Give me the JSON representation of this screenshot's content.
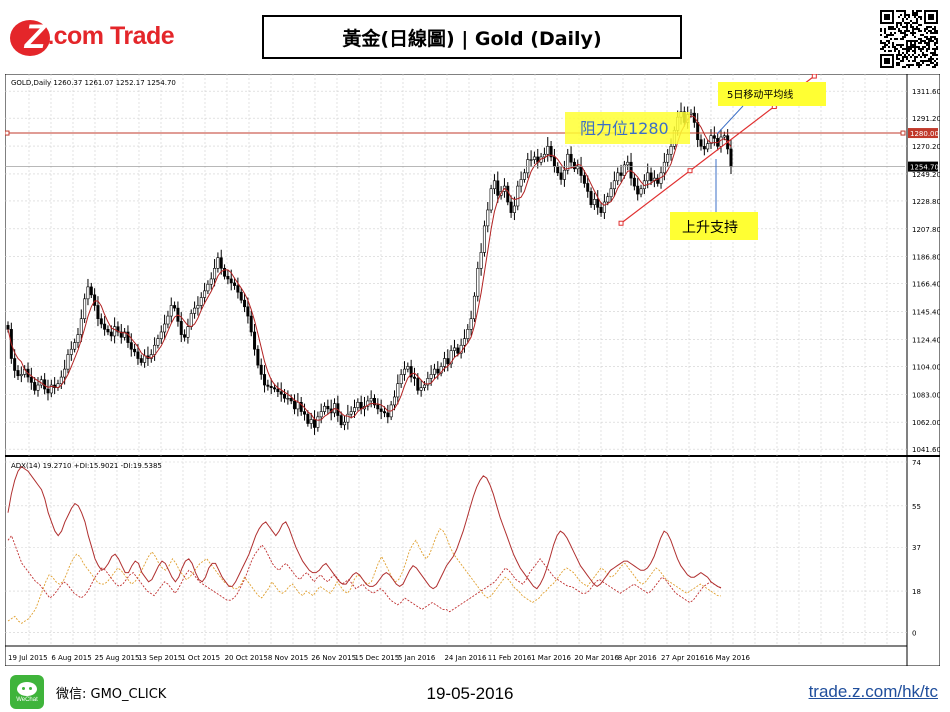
{
  "header": {
    "logo_z": "Z",
    "logo_dot": ".",
    "logo_text": "com Trade",
    "title": "黃金(日線圖) | Gold  (Daily)"
  },
  "footer": {
    "wechat_badge": "WeChat",
    "wechat_id": "微信: GMO_CLICK",
    "date": "19-05-2016",
    "url": "trade.z.com/hk/tc"
  },
  "colors": {
    "brand_red": "#e4262a",
    "candle": "#000000",
    "ma_line": "#b22222",
    "resistance_line": "#c0392b",
    "trend_line": "#e03030",
    "adx_line": "#b03030",
    "plus_di": "#e0a030",
    "minus_di": "#c03030",
    "callout_bg": "#ffff33",
    "grid": "#d0d0d0"
  },
  "chart_data": {
    "type": "candlestick",
    "symbol_header": "GOLD,Daily  1260.37 1261.07 1252.17 1254.70",
    "price_axis": {
      "range": [
        1038,
        1320
      ],
      "ticks": [
        "1311.60",
        "1291.20",
        "1270.20",
        "1249.20",
        "1228.80",
        "1207.80",
        "1186.80",
        "1166.40",
        "1145.40",
        "1124.40",
        "1104.00",
        "1083.00",
        "1062.00",
        "1041.60"
      ],
      "highlight_labels": [
        "1280.00",
        "1254.70"
      ]
    },
    "x_axis": {
      "ticks": [
        "19 Jul 2015",
        "6 Aug 2015",
        "25 Aug 2015",
        "13 Sep 2015",
        "1 Oct 2015",
        "20 Oct 2015",
        "8 Nov 2015",
        "26 Nov 2015",
        "15 Dec 2015",
        "5 Jan 2016",
        "24 Jan 2016",
        "11 Feb 2016",
        "1 Mar 2016",
        "20 Mar 2016",
        "8 Apr 2016",
        "27 Apr 2016",
        "16 May 2016"
      ]
    },
    "close_series": [
      1132,
      1110,
      1101,
      1097,
      1098,
      1102,
      1096,
      1092,
      1086,
      1090,
      1094,
      1087,
      1084,
      1090,
      1088,
      1091,
      1096,
      1102,
      1113,
      1117,
      1122,
      1128,
      1140,
      1155,
      1164,
      1158,
      1150,
      1140,
      1136,
      1132,
      1130,
      1127,
      1134,
      1130,
      1126,
      1130,
      1122,
      1117,
      1115,
      1110,
      1107,
      1112,
      1110,
      1113,
      1120,
      1125,
      1130,
      1136,
      1142,
      1150,
      1148,
      1138,
      1128,
      1126,
      1134,
      1144,
      1148,
      1150,
      1156,
      1161,
      1166,
      1170,
      1178,
      1186,
      1178,
      1172,
      1170,
      1167,
      1165,
      1160,
      1154,
      1149,
      1142,
      1130,
      1117,
      1105,
      1098,
      1090,
      1089,
      1088,
      1087,
      1085,
      1083,
      1080,
      1080,
      1078,
      1072,
      1077,
      1070,
      1068,
      1061,
      1064,
      1058,
      1066,
      1070,
      1074,
      1072,
      1069,
      1076,
      1067,
      1060,
      1062,
      1068,
      1070,
      1073,
      1077,
      1072,
      1074,
      1078,
      1080,
      1075,
      1072,
      1070,
      1069,
      1066,
      1075,
      1081,
      1091,
      1098,
      1102,
      1104,
      1096,
      1095,
      1086,
      1088,
      1090,
      1095,
      1098,
      1102,
      1099,
      1104,
      1110,
      1106,
      1116,
      1118,
      1114,
      1120,
      1125,
      1132,
      1140,
      1157,
      1178,
      1190,
      1210,
      1222,
      1238,
      1244,
      1233,
      1236,
      1240,
      1228,
      1220,
      1225,
      1240,
      1245,
      1250,
      1260,
      1260,
      1262,
      1258,
      1262,
      1264,
      1270,
      1262,
      1255,
      1250,
      1245,
      1252,
      1264,
      1258,
      1253,
      1255,
      1248,
      1242,
      1236,
      1226,
      1230,
      1224,
      1220,
      1228,
      1232,
      1238,
      1244,
      1250,
      1248,
      1256,
      1258,
      1246,
      1240,
      1234,
      1238,
      1244,
      1250,
      1244,
      1246,
      1242,
      1250,
      1258,
      1264,
      1270,
      1282,
      1292,
      1296,
      1288,
      1294,
      1295,
      1288,
      1275,
      1270,
      1268,
      1272,
      1278,
      1276,
      1270,
      1277,
      1278,
      1268,
      1254.7
    ],
    "ma_label": "5日移动平均线",
    "resistance": {
      "level": 1280,
      "label": "阻力位1280"
    },
    "trend_support": {
      "label": "上升支持",
      "start": [
        184,
        1212
      ],
      "end": [
        230,
        1300
      ]
    },
    "indicator": {
      "header": "ADX(14) 19.2710 +DI:15.9021 -DI:19.5385",
      "range": [
        -5,
        74
      ],
      "ticks": [
        "74",
        "55",
        "37",
        "18",
        "0"
      ],
      "adx": [
        52,
        60,
        66,
        70,
        72,
        71,
        70,
        68,
        66,
        64,
        62,
        58,
        52,
        48,
        44,
        42,
        44,
        48,
        51,
        54,
        56,
        55,
        52,
        48,
        42,
        37,
        32,
        29,
        27,
        28,
        30,
        33,
        34,
        32,
        29,
        26,
        26,
        29,
        31,
        30,
        26,
        24,
        22,
        23,
        26,
        29,
        31,
        30,
        27,
        24,
        22,
        24,
        28,
        31,
        32,
        30,
        26,
        23,
        22,
        24,
        28,
        30,
        30,
        27,
        24,
        22,
        20,
        20,
        22,
        25,
        28,
        31,
        34,
        38,
        42,
        45,
        47,
        48,
        46,
        44,
        42,
        44,
        47,
        48,
        45,
        41,
        37,
        34,
        31,
        29,
        27,
        26,
        26,
        27,
        29,
        30,
        28,
        26,
        24,
        22,
        21,
        21,
        23,
        25,
        26,
        25,
        23,
        21,
        20,
        20,
        21,
        23,
        25,
        26,
        25,
        23,
        21,
        20,
        21,
        24,
        27,
        29,
        28,
        26,
        24,
        22,
        20,
        19,
        20,
        23,
        26,
        29,
        31,
        33,
        36,
        40,
        44,
        49,
        54,
        59,
        63,
        66,
        68,
        67,
        64,
        60,
        55,
        50,
        46,
        42,
        38,
        34,
        31,
        28,
        26,
        24,
        22,
        20,
        19,
        21,
        24,
        28,
        33,
        38,
        42,
        44,
        43,
        41,
        38,
        35,
        32,
        29,
        27,
        25,
        23,
        21,
        20,
        21,
        23,
        25,
        27,
        28,
        29,
        30,
        31,
        31,
        30,
        29,
        28,
        27,
        27,
        28,
        30,
        33,
        37,
        41,
        44,
        43,
        40,
        36,
        32,
        29,
        27,
        25,
        24,
        24,
        25,
        26,
        25,
        24,
        22,
        21,
        20,
        19.27
      ],
      "plus_di": [
        5,
        6,
        7,
        5,
        4,
        5,
        6,
        8,
        10,
        14,
        18,
        22,
        25,
        24,
        22,
        21,
        22,
        25,
        29,
        32,
        34,
        33,
        30,
        28,
        26,
        24,
        22,
        21,
        21,
        22,
        24,
        26,
        28,
        27,
        25,
        23,
        21,
        22,
        24,
        27,
        30,
        33,
        35,
        33,
        30,
        28,
        27,
        29,
        32,
        30,
        27,
        25,
        23,
        24,
        26,
        28,
        30,
        31,
        32,
        30,
        28,
        26,
        24,
        22,
        21,
        20,
        19,
        19,
        21,
        24,
        22,
        20,
        18,
        16,
        15,
        17,
        19,
        22,
        20,
        18,
        17,
        18,
        20,
        21,
        19,
        17,
        16,
        18,
        17,
        16,
        18,
        20,
        19,
        18,
        17,
        19,
        22,
        20,
        18,
        17,
        19,
        23,
        25,
        24,
        22,
        21,
        22,
        26,
        30,
        33,
        30,
        27,
        24,
        22,
        23,
        26,
        30,
        35,
        38,
        40,
        37,
        34,
        32,
        34,
        38,
        42,
        45,
        44,
        41,
        37,
        34,
        32,
        30,
        28,
        26,
        24,
        22,
        20,
        18,
        16,
        15,
        16,
        18,
        20,
        22,
        24,
        23,
        21,
        19,
        18,
        16,
        15,
        14,
        13,
        14,
        15,
        17,
        18,
        20,
        21,
        23,
        25,
        27,
        28,
        27,
        26,
        24,
        22,
        21,
        20,
        22,
        24,
        26,
        28,
        27,
        25,
        24,
        25,
        27,
        29,
        30,
        28,
        26,
        24,
        22,
        21,
        22,
        24,
        26,
        28,
        27,
        25,
        23,
        22,
        21,
        20,
        19,
        18,
        17,
        18,
        19,
        20,
        21,
        20,
        19,
        18,
        17,
        16,
        15.9
      ],
      "minus_di": [
        40,
        42,
        38,
        34,
        30,
        28,
        26,
        24,
        22,
        21,
        19,
        17,
        15,
        16,
        18,
        20,
        22,
        21,
        19,
        17,
        16,
        15,
        16,
        18,
        21,
        24,
        26,
        28,
        27,
        25,
        23,
        21,
        20,
        21,
        23,
        25,
        26,
        24,
        22,
        20,
        18,
        17,
        16,
        18,
        20,
        22,
        21,
        19,
        17,
        19,
        22,
        25,
        27,
        26,
        24,
        22,
        21,
        20,
        19,
        18,
        17,
        16,
        15,
        14,
        14,
        15,
        17,
        20,
        23,
        27,
        31,
        34,
        36,
        38,
        36,
        33,
        30,
        28,
        27,
        29,
        30,
        28,
        26,
        24,
        23,
        25,
        26,
        24,
        22,
        24,
        25,
        23,
        22,
        24,
        25,
        23,
        21,
        22,
        23,
        21,
        19,
        20,
        21,
        19,
        18,
        17,
        18,
        19,
        18,
        16,
        14,
        13,
        12,
        13,
        15,
        14,
        13,
        12,
        11,
        10,
        11,
        12,
        13,
        12,
        11,
        10,
        10,
        9,
        10,
        11,
        12,
        13,
        14,
        15,
        16,
        17,
        18,
        19,
        20,
        21,
        22,
        24,
        26,
        28,
        27,
        25,
        23,
        22,
        21,
        23,
        26,
        28,
        30,
        32,
        30,
        28,
        26,
        24,
        23,
        22,
        21,
        20,
        20,
        19,
        18,
        17,
        17,
        18,
        20,
        22,
        23,
        22,
        21,
        20,
        19,
        18,
        17,
        18,
        19,
        20,
        21,
        20,
        19,
        18,
        17,
        18,
        20,
        22,
        24,
        23,
        21,
        19,
        17,
        16,
        15,
        14,
        13,
        14,
        16,
        18,
        20,
        21,
        22,
        21,
        20,
        19.5
      ]
    }
  }
}
